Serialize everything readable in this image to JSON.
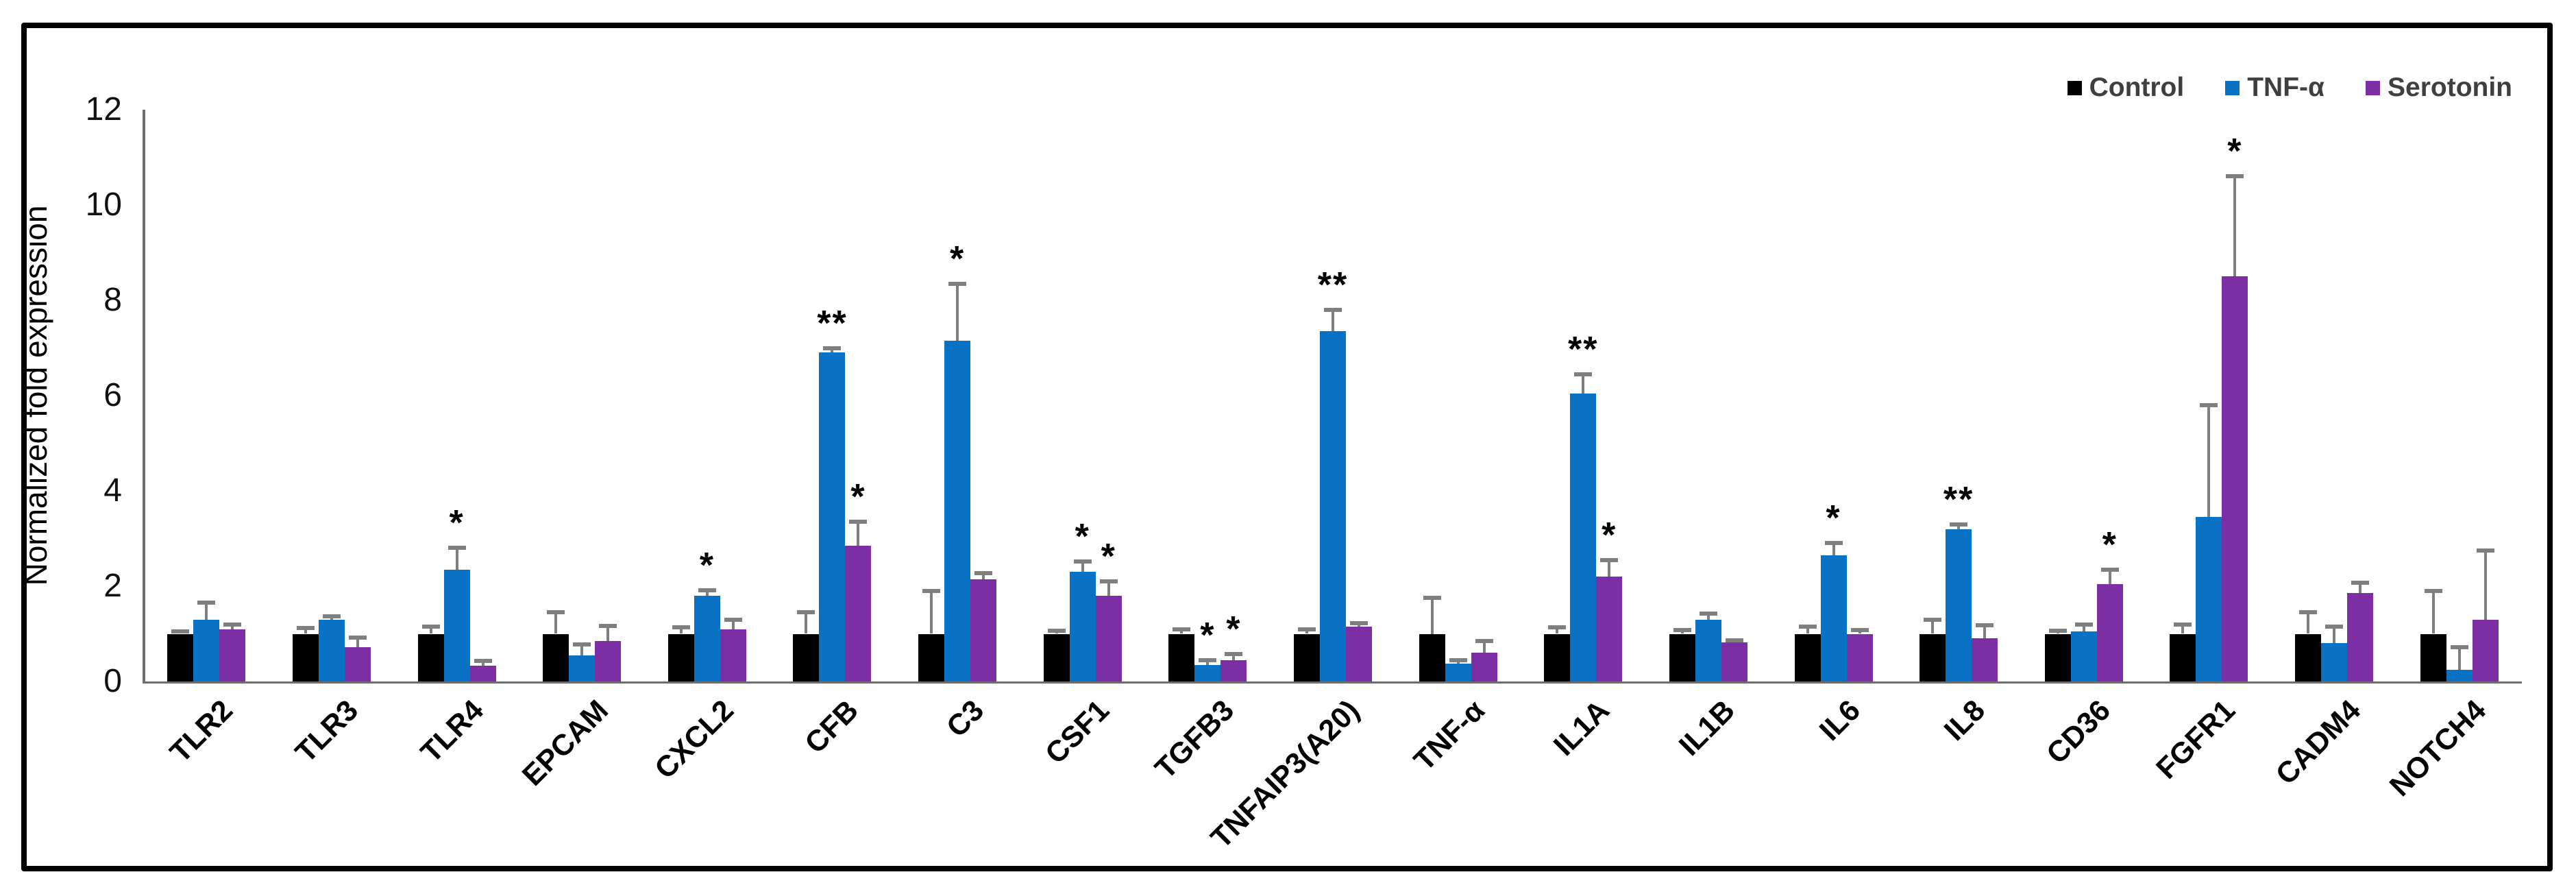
{
  "figure": {
    "background": "#ffffff",
    "panel_border_color": "#000000",
    "axis_color": "#6e6e6e",
    "error_bar_color": "#7f7f7f",
    "tick_label_color": "#111111",
    "legend_text_color": "#3f3f3f"
  },
  "legend": {
    "items": [
      {
        "label": "Control",
        "color": "#000000"
      },
      {
        "label": "TNF-α",
        "color": "#0a72c5"
      },
      {
        "label": "Serotonin",
        "color": "#7c2fa5"
      }
    ]
  },
  "chart_data": {
    "type": "bar",
    "title": "",
    "xlabel": "",
    "ylabel": "Normalized fold expression",
    "ylim": [
      0,
      12
    ],
    "yticks": [
      0,
      2,
      4,
      6,
      8,
      10,
      12
    ],
    "grid": false,
    "legend_position": "top-right",
    "error_bars": "upper only",
    "significance_annotation": "asterisks above error bars",
    "categories": [
      "TLR2",
      "TLR3",
      "TLR4",
      "EPCAM",
      "CXCL2",
      "CFB",
      "C3",
      "CSF1",
      "TGFB3",
      "TNFAIP3(A20)",
      "TNF-α",
      "IL1A",
      "IL1B",
      "IL6",
      "IL8",
      "CD36",
      "FGFR1",
      "CADM4",
      "NOTCH4"
    ],
    "series": [
      {
        "name": "Control",
        "color": "#000000",
        "values": [
          1,
          1,
          1,
          1,
          1,
          1,
          1,
          1,
          1,
          1,
          1,
          1,
          1,
          1,
          1,
          1,
          1,
          1,
          1
        ],
        "errors": [
          0.05,
          0.12,
          0.15,
          0.45,
          0.13,
          0.45,
          0.9,
          0.07,
          0.1,
          0.1,
          0.75,
          0.13,
          0.08,
          0.15,
          0.3,
          0.06,
          0.2,
          0.45,
          0.9
        ],
        "sig": [
          "",
          "",
          "",
          "",
          "",
          "",
          "",
          "",
          "",
          "",
          "",
          "",
          "",
          "",
          "",
          "",
          "",
          "",
          ""
        ]
      },
      {
        "name": "TNF-α",
        "color": "#0a72c5",
        "values": [
          1.3,
          1.3,
          2.35,
          0.55,
          1.8,
          6.9,
          7.15,
          2.3,
          0.35,
          7.35,
          0.38,
          6.05,
          1.3,
          2.65,
          3.2,
          1.05,
          3.45,
          0.8,
          0.25
        ],
        "errors": [
          0.35,
          0.07,
          0.45,
          0.22,
          0.12,
          0.1,
          1.2,
          0.22,
          0.1,
          0.45,
          0.07,
          0.4,
          0.12,
          0.25,
          0.1,
          0.15,
          2.35,
          0.35,
          0.47
        ],
        "sig": [
          "",
          "",
          "*",
          "",
          "*",
          "**",
          "*",
          "*",
          "*",
          "**",
          "",
          "**",
          "",
          "*",
          "**",
          "",
          "",
          "",
          ""
        ]
      },
      {
        "name": "Serotonin",
        "color": "#7c2fa5",
        "values": [
          1.1,
          0.72,
          0.33,
          0.85,
          1.1,
          2.85,
          2.15,
          1.8,
          0.45,
          1.15,
          0.6,
          2.2,
          0.82,
          1.0,
          0.9,
          2.05,
          8.5,
          1.85,
          1.3
        ],
        "errors": [
          0.1,
          0.2,
          0.1,
          0.32,
          0.2,
          0.5,
          0.12,
          0.3,
          0.12,
          0.07,
          0.25,
          0.35,
          0.05,
          0.08,
          0.28,
          0.3,
          2.1,
          0.22,
          1.45
        ],
        "sig": [
          "",
          "",
          "",
          "",
          "",
          "*",
          "",
          "*",
          "*",
          "",
          "",
          "*",
          "",
          "",
          "",
          "*",
          "*",
          "",
          ""
        ]
      }
    ]
  }
}
